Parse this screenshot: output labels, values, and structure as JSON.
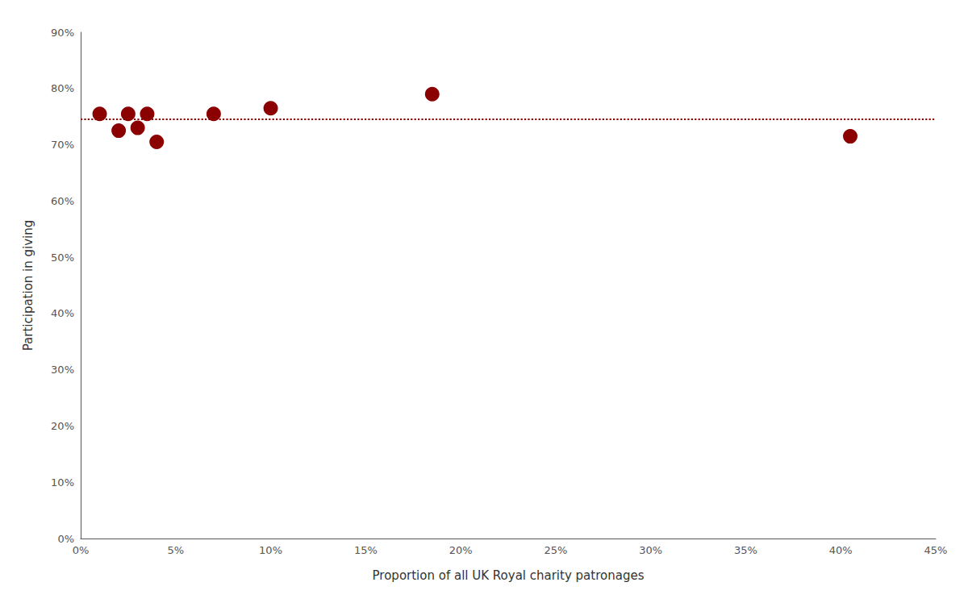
{
  "chart_data": {
    "type": "scatter",
    "x": [
      1.0,
      2.0,
      2.5,
      3.0,
      3.5,
      4.0,
      7.0,
      10.0,
      18.5,
      40.5
    ],
    "values": [
      75.5,
      72.5,
      75.5,
      73.0,
      75.5,
      70.5,
      75.5,
      76.5,
      79.0,
      71.5
    ],
    "color": "#8B0000",
    "marker": "circle",
    "trendline": {
      "y": 74.5,
      "color": "#8B0000",
      "line_style": "dotted"
    },
    "xlabel": "Proportion of all UK Royal charity patronages",
    "ylabel": "Participation in giving",
    "xlim": [
      0,
      45
    ],
    "ylim": [
      0,
      90
    ],
    "xticks": [
      {
        "value": 0,
        "label": "0%"
      },
      {
        "value": 5,
        "label": "5%"
      },
      {
        "value": 10,
        "label": "10%"
      },
      {
        "value": 15,
        "label": "15%"
      },
      {
        "value": 20,
        "label": "20%"
      },
      {
        "value": 25,
        "label": "25%"
      },
      {
        "value": 30,
        "label": "30%"
      },
      {
        "value": 35,
        "label": "35%"
      },
      {
        "value": 40,
        "label": "40%"
      },
      {
        "value": 45,
        "label": "45%"
      }
    ],
    "yticks": [
      {
        "value": 0,
        "label": "0%"
      },
      {
        "value": 10,
        "label": "10%"
      },
      {
        "value": 20,
        "label": "20%"
      },
      {
        "value": 30,
        "label": "30%"
      },
      {
        "value": 40,
        "label": "40%"
      },
      {
        "value": 50,
        "label": "50%"
      },
      {
        "value": 60,
        "label": "60%"
      },
      {
        "value": 70,
        "label": "70%"
      },
      {
        "value": 80,
        "label": "80%"
      },
      {
        "value": 90,
        "label": "90%"
      }
    ],
    "grid": false
  }
}
